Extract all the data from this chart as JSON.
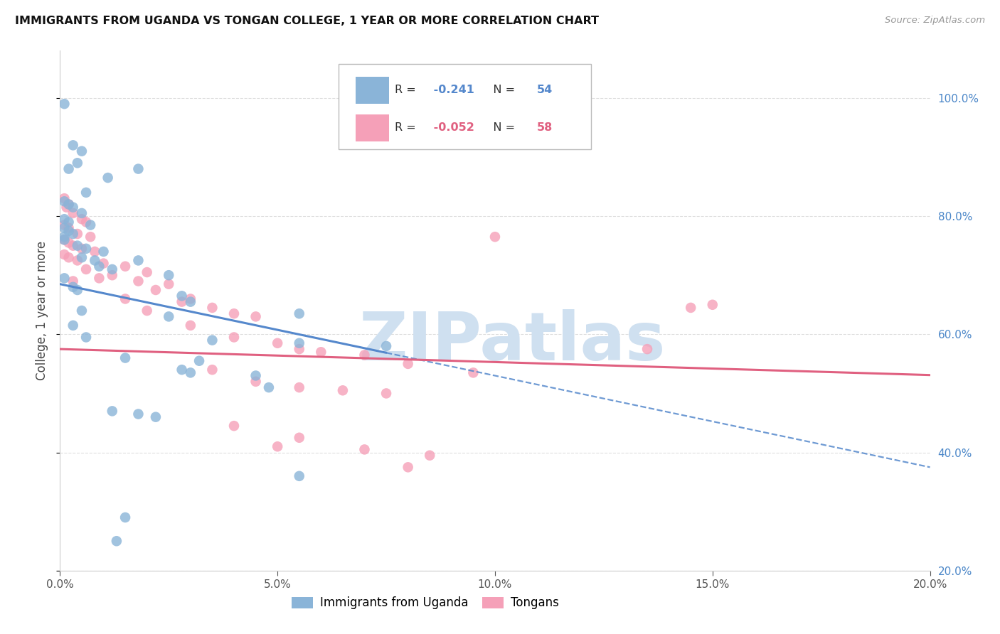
{
  "title": "IMMIGRANTS FROM UGANDA VS TONGAN COLLEGE, 1 YEAR OR MORE CORRELATION CHART",
  "source": "Source: ZipAtlas.com",
  "ylabel_label": "College, 1 year or more",
  "xlim": [
    0.0,
    20.0
  ],
  "ylim": [
    20.0,
    108.0
  ],
  "yticks": [
    20.0,
    40.0,
    60.0,
    80.0,
    100.0
  ],
  "xticks": [
    0.0,
    5.0,
    10.0,
    15.0,
    20.0
  ],
  "blue_scatter": [
    [
      0.1,
      99.0
    ],
    [
      0.3,
      92.0
    ],
    [
      0.5,
      91.0
    ],
    [
      0.4,
      89.0
    ],
    [
      0.2,
      88.0
    ],
    [
      1.8,
      88.0
    ],
    [
      1.1,
      86.5
    ],
    [
      0.6,
      84.0
    ],
    [
      0.1,
      82.5
    ],
    [
      0.2,
      82.0
    ],
    [
      0.3,
      81.5
    ],
    [
      0.5,
      80.5
    ],
    [
      0.1,
      79.5
    ],
    [
      0.2,
      79.0
    ],
    [
      0.7,
      78.5
    ],
    [
      0.1,
      78.0
    ],
    [
      0.2,
      77.5
    ],
    [
      0.3,
      77.0
    ],
    [
      0.1,
      76.5
    ],
    [
      0.1,
      76.0
    ],
    [
      0.4,
      75.0
    ],
    [
      0.6,
      74.5
    ],
    [
      1.0,
      74.0
    ],
    [
      0.5,
      73.0
    ],
    [
      0.8,
      72.5
    ],
    [
      1.8,
      72.5
    ],
    [
      0.9,
      71.5
    ],
    [
      1.2,
      71.0
    ],
    [
      2.5,
      70.0
    ],
    [
      0.1,
      69.5
    ],
    [
      0.3,
      68.0
    ],
    [
      0.4,
      67.5
    ],
    [
      2.8,
      66.5
    ],
    [
      3.0,
      65.5
    ],
    [
      0.5,
      64.0
    ],
    [
      2.5,
      63.0
    ],
    [
      5.5,
      63.5
    ],
    [
      0.3,
      61.5
    ],
    [
      0.6,
      59.5
    ],
    [
      3.5,
      59.0
    ],
    [
      5.5,
      58.5
    ],
    [
      1.5,
      56.0
    ],
    [
      3.2,
      55.5
    ],
    [
      2.8,
      54.0
    ],
    [
      3.0,
      53.5
    ],
    [
      4.5,
      53.0
    ],
    [
      7.5,
      58.0
    ],
    [
      4.8,
      51.0
    ],
    [
      1.2,
      47.0
    ],
    [
      1.8,
      46.5
    ],
    [
      2.2,
      46.0
    ],
    [
      5.5,
      36.0
    ],
    [
      1.5,
      29.0
    ],
    [
      1.3,
      25.0
    ]
  ],
  "pink_scatter": [
    [
      0.1,
      83.0
    ],
    [
      0.2,
      82.0
    ],
    [
      0.15,
      81.5
    ],
    [
      0.3,
      80.5
    ],
    [
      0.5,
      79.5
    ],
    [
      0.6,
      79.0
    ],
    [
      0.1,
      78.5
    ],
    [
      0.2,
      78.0
    ],
    [
      0.4,
      77.0
    ],
    [
      0.7,
      76.5
    ],
    [
      0.1,
      76.0
    ],
    [
      0.2,
      75.5
    ],
    [
      0.3,
      75.0
    ],
    [
      0.5,
      74.5
    ],
    [
      0.8,
      74.0
    ],
    [
      0.1,
      73.5
    ],
    [
      0.2,
      73.0
    ],
    [
      0.4,
      72.5
    ],
    [
      1.0,
      72.0
    ],
    [
      1.5,
      71.5
    ],
    [
      0.6,
      71.0
    ],
    [
      2.0,
      70.5
    ],
    [
      1.2,
      70.0
    ],
    [
      0.9,
      69.5
    ],
    [
      1.8,
      69.0
    ],
    [
      2.5,
      68.5
    ],
    [
      2.2,
      67.5
    ],
    [
      3.0,
      66.0
    ],
    [
      2.8,
      65.5
    ],
    [
      3.5,
      64.5
    ],
    [
      4.0,
      63.5
    ],
    [
      4.5,
      63.0
    ],
    [
      0.3,
      69.0
    ],
    [
      1.5,
      66.0
    ],
    [
      2.0,
      64.0
    ],
    [
      3.0,
      61.5
    ],
    [
      4.0,
      59.5
    ],
    [
      5.0,
      58.5
    ],
    [
      5.5,
      57.5
    ],
    [
      6.0,
      57.0
    ],
    [
      7.0,
      56.5
    ],
    [
      8.0,
      55.0
    ],
    [
      9.5,
      53.5
    ],
    [
      10.0,
      76.5
    ],
    [
      13.5,
      57.5
    ],
    [
      14.5,
      64.5
    ],
    [
      15.0,
      65.0
    ],
    [
      3.5,
      54.0
    ],
    [
      4.5,
      52.0
    ],
    [
      5.5,
      51.0
    ],
    [
      6.5,
      50.5
    ],
    [
      7.5,
      50.0
    ],
    [
      4.0,
      44.5
    ],
    [
      5.5,
      42.5
    ],
    [
      5.0,
      41.0
    ],
    [
      7.0,
      40.5
    ],
    [
      8.5,
      39.5
    ],
    [
      8.0,
      37.5
    ]
  ],
  "blue_line_intercept": 68.5,
  "blue_line_slope": -1.55,
  "blue_line_solid_x_end": 7.5,
  "pink_line_intercept": 57.5,
  "pink_line_slope": -0.22,
  "blue_color": "#8ab4d8",
  "pink_color": "#f5a0b8",
  "blue_line_color": "#5588cc",
  "pink_line_color": "#e06080",
  "watermark_text": "ZIPatlas",
  "watermark_color": "#cfe0f0",
  "background_color": "#ffffff",
  "legend_r1": "-0.241",
  "legend_n1": "54",
  "legend_r2": "-0.052",
  "legend_n2": "58",
  "bottom_legend_labels": [
    "Immigrants from Uganda",
    "Tongans"
  ]
}
